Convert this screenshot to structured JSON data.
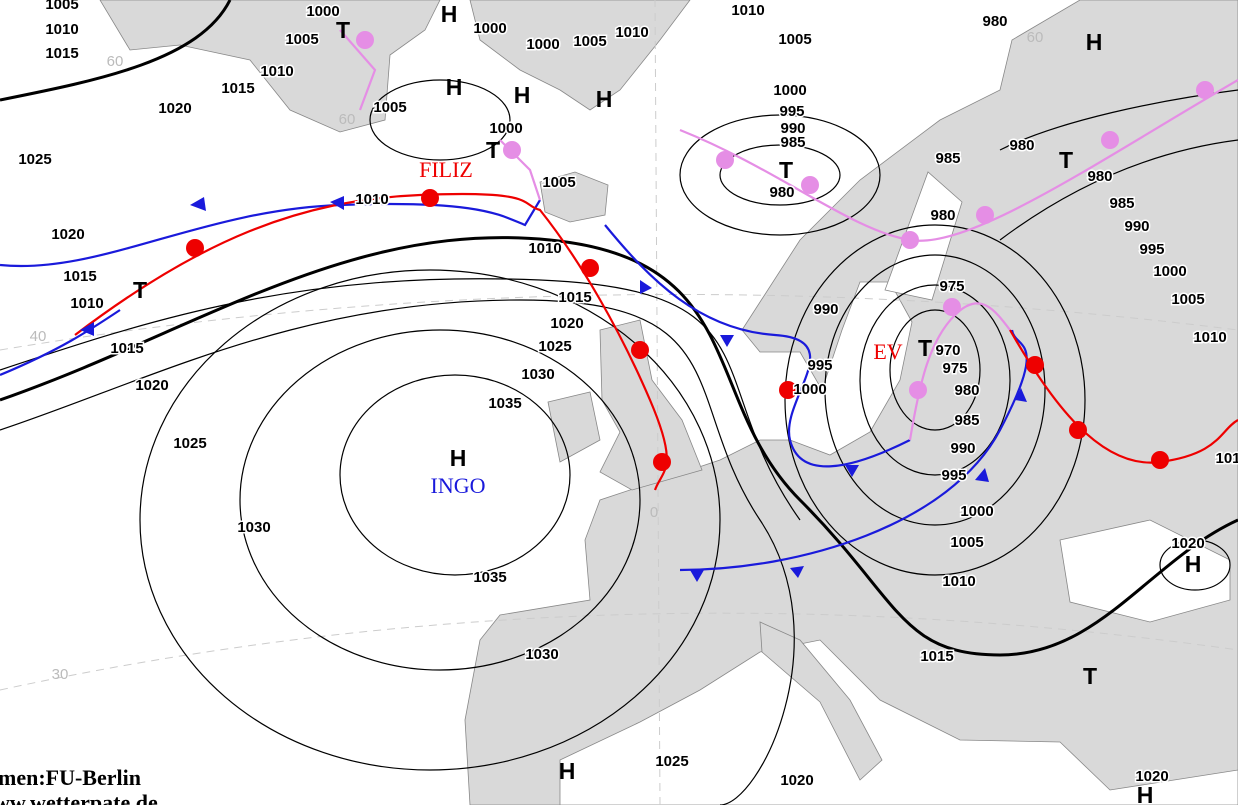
{
  "isobar_labels": [
    1005,
    1010,
    1015,
    1020,
    1025,
    1015,
    1010,
    1000,
    1005,
    1000,
    1000,
    1005,
    1010,
    1010,
    1005,
    980,
    1005,
    1000,
    1005,
    1010,
    1020,
    1015,
    1010,
    1015,
    1020,
    1025,
    1030,
    1035,
    1035,
    1030,
    1025,
    1020,
    1015,
    1010,
    1030,
    1025,
    1020,
    1000,
    995,
    990,
    985,
    980,
    985,
    980,
    980,
    980,
    985,
    990,
    995,
    1000,
    1005,
    1010,
    990,
    995,
    1000,
    975,
    970,
    975,
    980,
    985,
    990,
    995,
    1000,
    1005,
    1010,
    1015,
    1020,
    1020,
    101
  ],
  "pressure_centers": [
    "T",
    "H",
    "H",
    "H",
    "H",
    "H",
    "T",
    "T",
    "H",
    "H",
    "T",
    "T",
    "T",
    "H",
    "T",
    "H"
  ],
  "system_names": [
    "FILIZ",
    "INGO",
    "EV"
  ],
  "grid_labels": [
    "60",
    "60",
    "60",
    "40",
    "30",
    "0"
  ],
  "credits": [
    "men:FU-Berlin",
    "ww.wetterpate.de"
  ]
}
